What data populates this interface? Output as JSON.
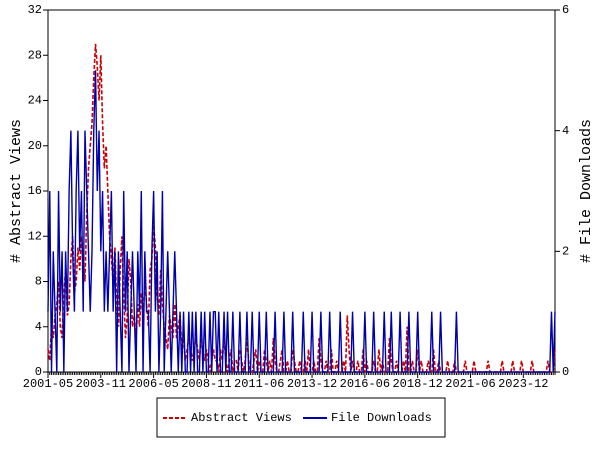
{
  "chart_data": {
    "type": "line",
    "ylabel": "# Abstract Views",
    "y2label": "# File Downloads",
    "ylim": [
      0,
      32
    ],
    "yticks": [
      0,
      4,
      8,
      12,
      16,
      20,
      24,
      28,
      32
    ],
    "y2lim": [
      0,
      6
    ],
    "y2ticks": [
      0,
      2,
      4,
      6
    ],
    "legend": "bottom",
    "categories": [
      "2001-05",
      null,
      null,
      null,
      null,
      null,
      null,
      null,
      null,
      null,
      null,
      null,
      null,
      null,
      null,
      null,
      null,
      null,
      null,
      null,
      null,
      null,
      null,
      null,
      null,
      null,
      null,
      null,
      null,
      null,
      "2003-11",
      null,
      null,
      null,
      null,
      null,
      null,
      null,
      null,
      null,
      null,
      null,
      null,
      null,
      null,
      null,
      null,
      null,
      null,
      null,
      null,
      null,
      null,
      null,
      null,
      null,
      null,
      null,
      null,
      null,
      "2006-05",
      null,
      null,
      null,
      null,
      null,
      null,
      null,
      null,
      null,
      null,
      null,
      null,
      null,
      null,
      null,
      null,
      null,
      null,
      null,
      null,
      null,
      null,
      null,
      null,
      null,
      null,
      null,
      null,
      null,
      "2008-11",
      null,
      null,
      null,
      null,
      null,
      null,
      null,
      null,
      null,
      null,
      null,
      null,
      null,
      null,
      null,
      null,
      null,
      null,
      null,
      null,
      null,
      null,
      null,
      null,
      null,
      null,
      null,
      null,
      null,
      "2011-06",
      null,
      null,
      null,
      null,
      null,
      null,
      null,
      null,
      null,
      null,
      null,
      null,
      null,
      null,
      null,
      null,
      null,
      null,
      null,
      null,
      null,
      null,
      null,
      null,
      null,
      null,
      null,
      null,
      null,
      "2013-12",
      null,
      null,
      null,
      null,
      null,
      null,
      null,
      null,
      null,
      null,
      null,
      null,
      null,
      null,
      null,
      null,
      null,
      null,
      null,
      null,
      null,
      null,
      null,
      null,
      null,
      null,
      null,
      null,
      null,
      "2016-06",
      null,
      null,
      null,
      null,
      null,
      null,
      null,
      null,
      null,
      null,
      null,
      null,
      null,
      null,
      null,
      null,
      null,
      null,
      null,
      null,
      null,
      null,
      null,
      null,
      null,
      null,
      null,
      null,
      null,
      "2018-12",
      null,
      null,
      null,
      null,
      null,
      null,
      null,
      null,
      null,
      null,
      null,
      null,
      null,
      null,
      null,
      null,
      null,
      null,
      null,
      null,
      null,
      null,
      null,
      null,
      null,
      null,
      null,
      null,
      null,
      "2021-06",
      null,
      null,
      null,
      null,
      null,
      null,
      null,
      null,
      null,
      null,
      null,
      null,
      null,
      null,
      null,
      null,
      null,
      null,
      null,
      null,
      null,
      null,
      null,
      null,
      null,
      null,
      null,
      null,
      null,
      "2023-12",
      null,
      null,
      null,
      null,
      null,
      null,
      null,
      null,
      null,
      null,
      null,
      null,
      null,
      null,
      null,
      null,
      null,
      null
    ],
    "series": [
      {
        "name": "Abstract Views",
        "color": "#cc0000",
        "linestyle": "dashed",
        "values": [
          2,
          1,
          4,
          3,
          5,
          6,
          8,
          4,
          3,
          7,
          9,
          5,
          6,
          10,
          12,
          7,
          8,
          11,
          9,
          12,
          10,
          8,
          14,
          18,
          20,
          22,
          26,
          29,
          27,
          24,
          28,
          22,
          18,
          20,
          16,
          12,
          10,
          8,
          11,
          6,
          4,
          9,
          12,
          7,
          3,
          5,
          10,
          8,
          4,
          5,
          3,
          6,
          4,
          7,
          5,
          8,
          6,
          4,
          9,
          10,
          13,
          11,
          7,
          5,
          9,
          6,
          4,
          3,
          2,
          5,
          4,
          3,
          6,
          3,
          4,
          5,
          2,
          3,
          1,
          2,
          3,
          2,
          1,
          2,
          3,
          2,
          1,
          3,
          2,
          1,
          2,
          1,
          0,
          1,
          2,
          1,
          1,
          0,
          2,
          1,
          3,
          1,
          0,
          1,
          2,
          0,
          1,
          1,
          0,
          2,
          1,
          0,
          1,
          3,
          1,
          0,
          0,
          1,
          2,
          0,
          1,
          0,
          0,
          2,
          1,
          0,
          1,
          0,
          3,
          1,
          0,
          0,
          1,
          2,
          0,
          0,
          1,
          0,
          0,
          2,
          1,
          0,
          0,
          1,
          0,
          0,
          1,
          0,
          2,
          0,
          0,
          1,
          0,
          0,
          3,
          1,
          0,
          0,
          1,
          0,
          0,
          2,
          0,
          0,
          1,
          0,
          0,
          0,
          1,
          0,
          5,
          2,
          0,
          1,
          0,
          0,
          1,
          0,
          0,
          2,
          0,
          1,
          0,
          0,
          0,
          1,
          0,
          0,
          2,
          0,
          1,
          0,
          0,
          0,
          3,
          1,
          0,
          0,
          1,
          0,
          0,
          0,
          1,
          0,
          4,
          0,
          0,
          1,
          0,
          0,
          2,
          0,
          1,
          0,
          0,
          0,
          1,
          0,
          0,
          2,
          0,
          0,
          1,
          0,
          0,
          0,
          0,
          1,
          0,
          0,
          0,
          1,
          0,
          0,
          0,
          0,
          0,
          1,
          0,
          0,
          0,
          0,
          1,
          0,
          0,
          0,
          0,
          0,
          0,
          0,
          1,
          0,
          0,
          0,
          0,
          0,
          0,
          0,
          1,
          0,
          0,
          0,
          0,
          0,
          1,
          0,
          0,
          0,
          0,
          1,
          0,
          0,
          0,
          0,
          0,
          1,
          0,
          0,
          0,
          0,
          0,
          0,
          0,
          0,
          1,
          0,
          0,
          0,
          2
        ]
      },
      {
        "name": "File Downloads",
        "color": "#0000aa",
        "linestyle": "solid",
        "axis": "y2",
        "values": [
          1,
          3,
          0,
          2,
          1,
          0,
          3,
          1,
          2,
          0,
          2,
          1,
          3,
          4,
          2,
          1,
          3,
          4,
          2,
          3,
          1,
          4,
          3,
          2,
          1,
          2,
          4,
          5,
          3,
          4,
          2,
          3,
          1,
          2,
          1,
          2,
          3,
          1,
          2,
          0,
          2,
          1,
          0,
          3,
          1,
          2,
          0,
          1,
          2,
          1,
          0,
          2,
          1,
          3,
          0,
          2,
          1,
          1,
          0,
          2,
          3,
          1,
          2,
          0,
          1,
          3,
          0,
          1,
          2,
          1,
          0,
          1,
          2,
          1,
          0,
          1,
          0,
          1,
          0,
          0,
          1,
          0,
          1,
          0,
          1,
          0,
          0,
          1,
          0,
          1,
          0,
          0,
          1,
          0,
          1,
          1,
          0,
          1,
          0,
          0,
          1,
          0,
          1,
          0,
          0,
          1,
          0,
          0,
          0,
          1,
          0,
          0,
          0,
          1,
          0,
          0,
          1,
          0,
          0,
          0,
          1,
          0,
          0,
          0,
          1,
          0,
          0,
          0,
          0,
          1,
          0,
          0,
          0,
          0,
          1,
          0,
          0,
          0,
          0,
          1,
          0,
          0,
          0,
          0,
          0,
          1,
          0,
          0,
          0,
          0,
          1,
          0,
          0,
          0,
          0,
          1,
          0,
          0,
          0,
          0,
          1,
          0,
          0,
          0,
          0,
          0,
          1,
          0,
          0,
          0,
          0,
          0,
          0,
          1,
          0,
          0,
          0,
          0,
          0,
          0,
          1,
          0,
          0,
          0,
          0,
          1,
          0,
          0,
          0,
          0,
          0,
          1,
          0,
          0,
          0,
          1,
          0,
          0,
          0,
          0,
          1,
          0,
          0,
          0,
          0,
          1,
          0,
          0,
          0,
          0,
          1,
          0,
          0,
          0,
          0,
          0,
          0,
          0,
          1,
          0,
          0,
          0,
          0,
          1,
          0,
          0,
          0,
          0,
          0,
          0,
          0,
          0,
          1,
          0,
          0,
          0,
          0,
          0,
          0,
          0,
          0,
          0,
          0,
          0,
          0,
          0,
          0,
          0,
          0,
          0,
          0,
          0,
          0,
          0,
          0,
          0,
          0,
          0,
          0,
          0,
          0,
          0,
          0,
          0,
          0,
          0,
          0,
          0,
          0,
          0,
          0,
          0,
          0,
          0,
          0,
          0,
          0,
          0,
          0,
          0,
          0,
          0,
          0,
          0,
          0,
          0,
          1,
          0,
          1
        ]
      }
    ]
  }
}
